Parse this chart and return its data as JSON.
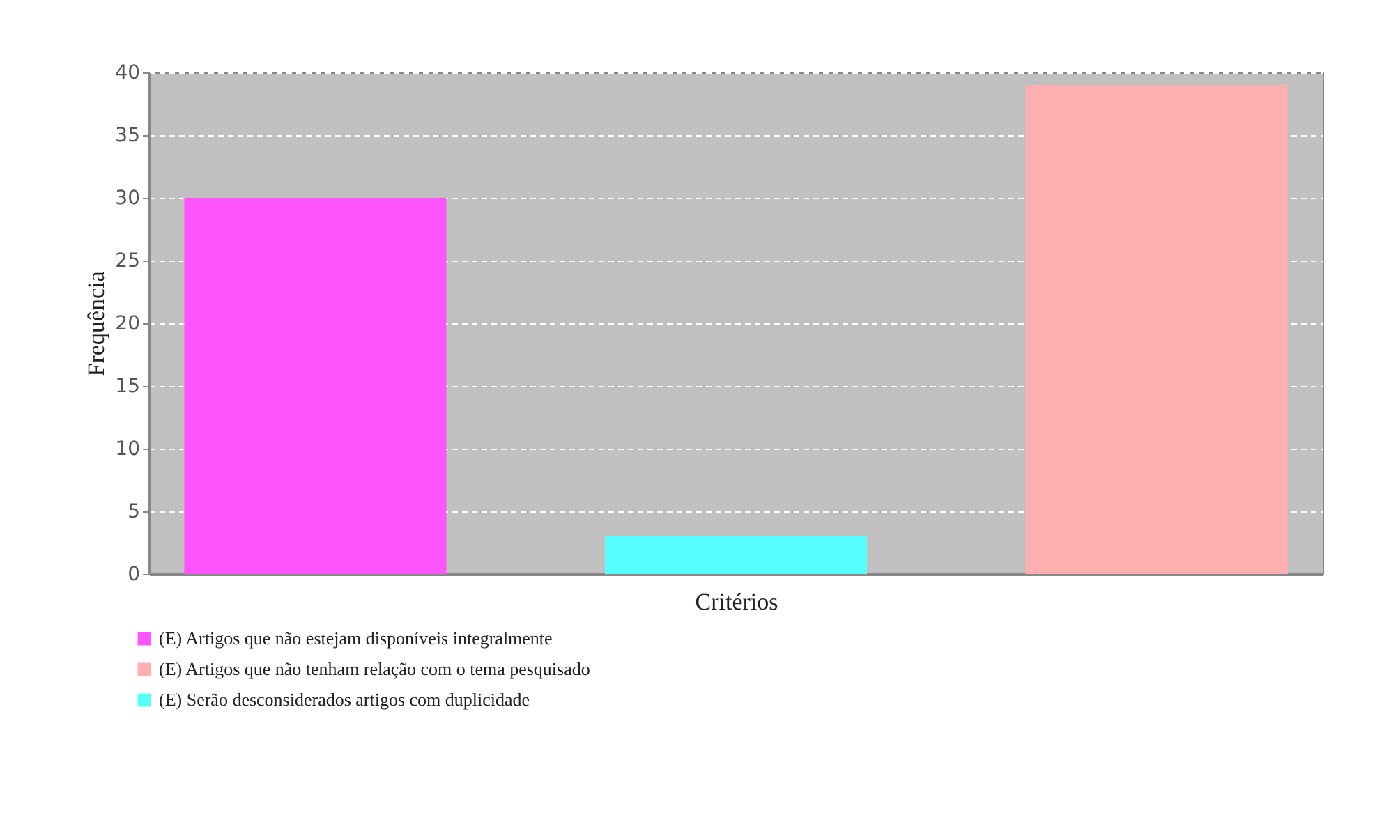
{
  "chart_data": {
    "type": "bar",
    "xlabel": "Critérios",
    "ylabel": "Frequência",
    "categories": [
      null,
      null,
      null
    ],
    "series": [
      {
        "name": "(E) Artigos  que não estejam  disponíveis  integralmente",
        "color": "#ff55ff",
        "values": [
          30,
          null,
          null
        ]
      },
      {
        "name": "(E) Artigos  que não tenham  relação  com o tema  pesquisado",
        "color": "#ffafaf",
        "values": [
          null,
          null,
          39
        ]
      },
      {
        "name": "(E) Serão desconsiderados  artigos  com duplicidade",
        "color": "#55ffff",
        "values": [
          null,
          3,
          null
        ]
      }
    ],
    "ylim": [
      0,
      40
    ],
    "yticks": [
      0,
      5,
      10,
      15,
      20,
      25,
      30,
      35,
      40
    ],
    "grid": "y",
    "legend": "bottom left"
  }
}
